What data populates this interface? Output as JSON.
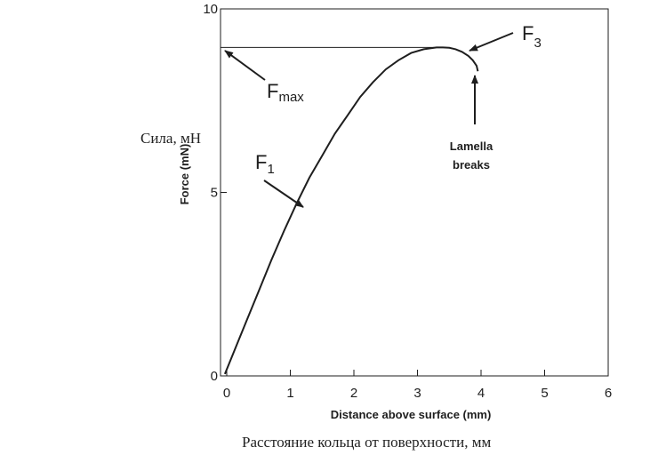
{
  "captions": {
    "y_ru": "Сила, мН",
    "x_ru": "Расстояние кольца от поверхности, мм"
  },
  "chart_data": {
    "type": "line",
    "xlabel": "Distance above surface (mm)",
    "ylabel": "Force (mN)",
    "xlim": [
      0,
      6
    ],
    "ylim": [
      0,
      10
    ],
    "x_ticks": [
      0,
      1,
      2,
      3,
      4,
      5,
      6
    ],
    "y_ticks": [
      0,
      5,
      10
    ],
    "grid": false,
    "series": [
      {
        "x": [
          -0.03,
          0.1,
          0.3,
          0.5,
          0.7,
          0.9,
          1.1,
          1.3,
          1.5,
          1.7,
          1.9,
          2.1,
          2.3,
          2.5,
          2.7,
          2.9,
          3.1,
          3.3,
          3.4,
          3.5,
          3.6,
          3.7,
          3.8,
          3.87,
          3.93,
          3.95
        ],
        "y": [
          0.05,
          0.6,
          1.45,
          2.3,
          3.15,
          3.95,
          4.7,
          5.4,
          6.0,
          6.6,
          7.1,
          7.6,
          8.0,
          8.35,
          8.6,
          8.8,
          8.9,
          8.95,
          8.95,
          8.94,
          8.9,
          8.83,
          8.72,
          8.6,
          8.45,
          8.3
        ]
      }
    ],
    "fmax_value": 8.95,
    "annotations": {
      "fmax": {
        "main": "F",
        "sub": "max"
      },
      "f1": {
        "main": "F",
        "sub": "1"
      },
      "f3": {
        "main": "F",
        "sub": "3"
      },
      "lamella_line1": "Lamella",
      "lamella_line2": "breaks"
    },
    "colors": {
      "line": "#1e1e1e",
      "axis": "#1e1e1e"
    }
  }
}
